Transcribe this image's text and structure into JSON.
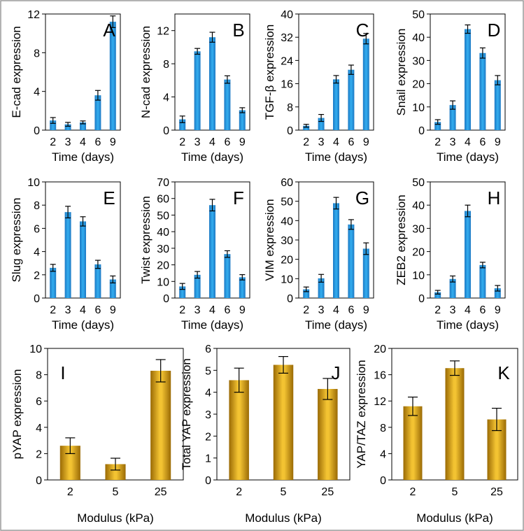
{
  "chart_data": [
    {
      "panel": "A",
      "type": "bar",
      "ylabel": "E-cad expression",
      "xlabel": "Time (days)",
      "categories": [
        "2",
        "3",
        "4",
        "6",
        "9"
      ],
      "values": [
        1.0,
        0.6,
        0.8,
        3.6,
        11.2
      ],
      "errors": [
        0.3,
        0.2,
        0.15,
        0.5,
        0.6
      ],
      "ylim": [
        0,
        12
      ],
      "yticks": [
        0,
        4,
        8,
        12
      ],
      "color": "blue"
    },
    {
      "panel": "B",
      "type": "bar",
      "ylabel": "N-cad expression",
      "xlabel": "Time (days)",
      "categories": [
        "2",
        "3",
        "4",
        "6",
        "9"
      ],
      "values": [
        1.3,
        9.5,
        11.2,
        6.1,
        2.4
      ],
      "errors": [
        0.4,
        0.35,
        0.6,
        0.45,
        0.3
      ],
      "ylim": [
        0,
        14
      ],
      "yticks": [
        0,
        4,
        8,
        12
      ],
      "color": "blue"
    },
    {
      "panel": "C",
      "type": "bar",
      "ylabel": "TGF-β expression",
      "xlabel": "Time (days)",
      "categories": [
        "2",
        "3",
        "4",
        "6",
        "9"
      ],
      "values": [
        1.5,
        4.2,
        17.5,
        20.8,
        31.5
      ],
      "errors": [
        0.5,
        1.2,
        1.3,
        1.6,
        1.8
      ],
      "ylim": [
        0,
        40
      ],
      "yticks": [
        0,
        8,
        16,
        24,
        32,
        40
      ],
      "color": "blue"
    },
    {
      "panel": "D",
      "type": "bar",
      "ylabel": "Snail expression",
      "xlabel": "Time (days)",
      "categories": [
        "2",
        "3",
        "4",
        "6",
        "9"
      ],
      "values": [
        3.5,
        10.8,
        43.5,
        33.2,
        21.5
      ],
      "errors": [
        1.0,
        1.8,
        1.8,
        2.2,
        2.0
      ],
      "ylim": [
        0,
        50
      ],
      "yticks": [
        0,
        10,
        20,
        30,
        40,
        50
      ],
      "color": "blue"
    },
    {
      "panel": "E",
      "type": "bar",
      "ylabel": "Slug expression",
      "xlabel": "Time (days)",
      "categories": [
        "2",
        "3",
        "4",
        "6",
        "9"
      ],
      "values": [
        2.6,
        7.4,
        6.6,
        2.9,
        1.6
      ],
      "errors": [
        0.3,
        0.5,
        0.4,
        0.35,
        0.3
      ],
      "ylim": [
        0,
        10
      ],
      "yticks": [
        0,
        2,
        4,
        6,
        8,
        10
      ],
      "color": "blue"
    },
    {
      "panel": "F",
      "type": "bar",
      "ylabel": "Twist expression",
      "xlabel": "Time (days)",
      "categories": [
        "2",
        "3",
        "4",
        "6",
        "9"
      ],
      "values": [
        7.0,
        14.0,
        56.0,
        26.5,
        12.5
      ],
      "errors": [
        1.8,
        2.0,
        3.5,
        2.0,
        1.6
      ],
      "ylim": [
        0,
        70
      ],
      "yticks": [
        0,
        10,
        20,
        30,
        40,
        50,
        60,
        70
      ],
      "color": "blue"
    },
    {
      "panel": "G",
      "type": "bar",
      "ylabel": "VIM expression",
      "xlabel": "Time (days)",
      "categories": [
        "2",
        "3",
        "4",
        "6",
        "9"
      ],
      "values": [
        4.5,
        10.2,
        49.0,
        38.0,
        25.5
      ],
      "errors": [
        1.2,
        2.0,
        3.0,
        2.5,
        3.0
      ],
      "ylim": [
        0,
        60
      ],
      "yticks": [
        0,
        10,
        20,
        30,
        40,
        50,
        60
      ],
      "color": "blue"
    },
    {
      "panel": "H",
      "type": "bar",
      "ylabel": "ZEB2 expression",
      "xlabel": "Time (days)",
      "categories": [
        "2",
        "3",
        "4",
        "6",
        "9"
      ],
      "values": [
        2.5,
        8.2,
        37.5,
        14.2,
        4.2
      ],
      "errors": [
        0.8,
        1.3,
        2.5,
        1.2,
        1.2
      ],
      "ylim": [
        0,
        50
      ],
      "yticks": [
        0,
        10,
        20,
        30,
        40,
        50
      ],
      "color": "blue"
    },
    {
      "panel": "I",
      "type": "bar",
      "ylabel": "pYAP expression",
      "xlabel": "Modulus (kPa)",
      "categories": [
        "2",
        "5",
        "25"
      ],
      "values": [
        2.6,
        1.2,
        8.3
      ],
      "errors": [
        0.6,
        0.45,
        0.85
      ],
      "ylim": [
        0,
        10
      ],
      "yticks": [
        0,
        2,
        4,
        6,
        8,
        10
      ],
      "color": "gold"
    },
    {
      "panel": "J",
      "type": "bar",
      "ylabel": "Total YAP expression",
      "xlabel": "Modulus (kPa)",
      "categories": [
        "2",
        "5",
        "25"
      ],
      "values": [
        4.55,
        5.25,
        4.15
      ],
      "errors": [
        0.55,
        0.38,
        0.48
      ],
      "ylim": [
        0,
        6
      ],
      "yticks": [
        0,
        1,
        2,
        3,
        4,
        5,
        6
      ],
      "color": "gold"
    },
    {
      "panel": "K",
      "type": "bar",
      "ylabel": "YAP/TAZ expression",
      "xlabel": "Modulus (kPa)",
      "categories": [
        "2",
        "5",
        "25"
      ],
      "values": [
        11.2,
        17.0,
        9.2
      ],
      "errors": [
        1.4,
        1.1,
        1.7
      ],
      "ylim": [
        0,
        20
      ],
      "yticks": [
        0,
        4,
        8,
        12,
        16,
        20
      ],
      "color": "gold"
    }
  ]
}
